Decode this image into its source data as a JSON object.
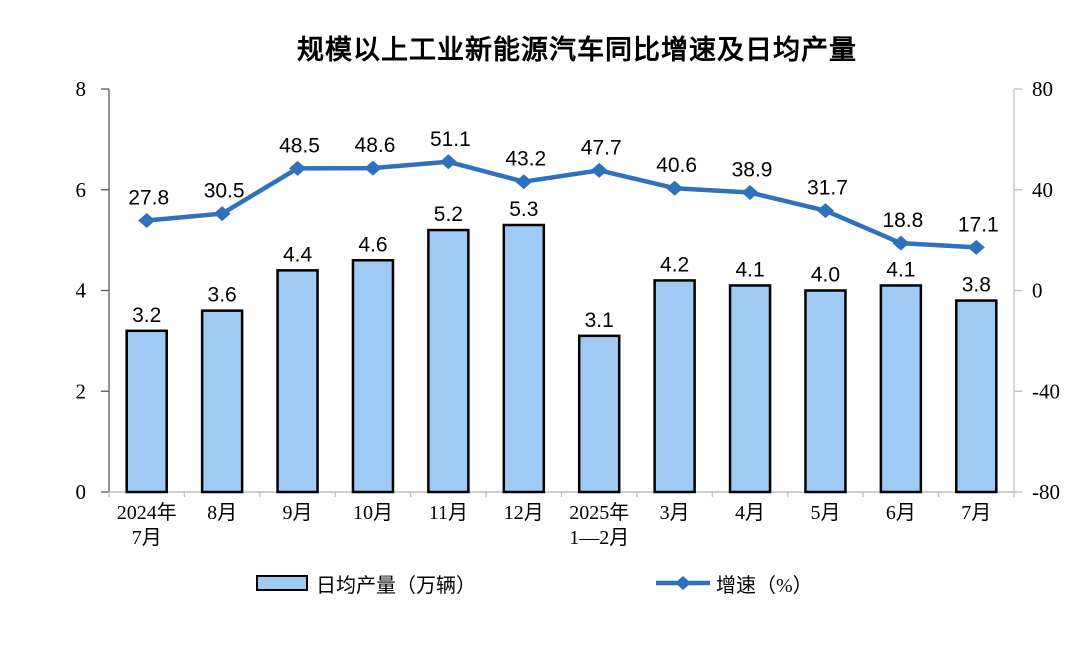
{
  "chart_data": {
    "type": "combo-bar-line",
    "title": "规模以上工业新能源汽车同比增速及日均产量",
    "categories": [
      [
        "2024年",
        "7月"
      ],
      [
        "8月"
      ],
      [
        "9月"
      ],
      [
        "10月"
      ],
      [
        "11月"
      ],
      [
        "12月"
      ],
      [
        "2025年",
        "1—2月"
      ],
      [
        "3月"
      ],
      [
        "4月"
      ],
      [
        "5月"
      ],
      [
        "6月"
      ],
      [
        "7月"
      ]
    ],
    "series": [
      {
        "name": "日均产量（万辆）",
        "type": "bar",
        "axis": "left",
        "values": [
          3.2,
          3.6,
          4.4,
          4.6,
          5.2,
          5.3,
          3.1,
          4.2,
          4.1,
          4.0,
          4.1,
          3.8
        ],
        "labels": [
          "3.2",
          "3.6",
          "4.4",
          "4.6",
          "5.2",
          "5.3",
          "3.1",
          "4.2",
          "4.1",
          "4.0",
          "4.1",
          "3.8"
        ],
        "fill": "#9ECAF3",
        "stroke": "#000000"
      },
      {
        "name": "增速（%）",
        "type": "line",
        "axis": "right",
        "values": [
          27.8,
          30.5,
          48.5,
          48.6,
          51.1,
          43.2,
          47.7,
          40.6,
          38.9,
          31.7,
          18.8,
          17.1
        ],
        "labels": [
          "27.8",
          "30.5",
          "48.5",
          "48.6",
          "51.1",
          "43.2",
          "47.7",
          "40.6",
          "38.9",
          "31.7",
          "18.8",
          "17.1"
        ],
        "color": "#2F71BC"
      }
    ],
    "left_axis": {
      "min": 0,
      "max": 8,
      "ticks": [
        0,
        2,
        4,
        6,
        8
      ]
    },
    "right_axis": {
      "min": -80,
      "max": 80,
      "ticks": [
        -80,
        -40,
        0,
        40,
        80
      ]
    },
    "grid": false,
    "legend_position": "bottom"
  },
  "legend": {
    "bar_label": "日均产量（万辆）",
    "line_label": "增速（%）"
  },
  "colors": {
    "bar_fill": "#9ECAF3",
    "bar_stroke": "#000000",
    "line": "#2F71BC",
    "axis_dark": "#595959",
    "axis_light": "#BFBFBF",
    "text": "#000000"
  }
}
